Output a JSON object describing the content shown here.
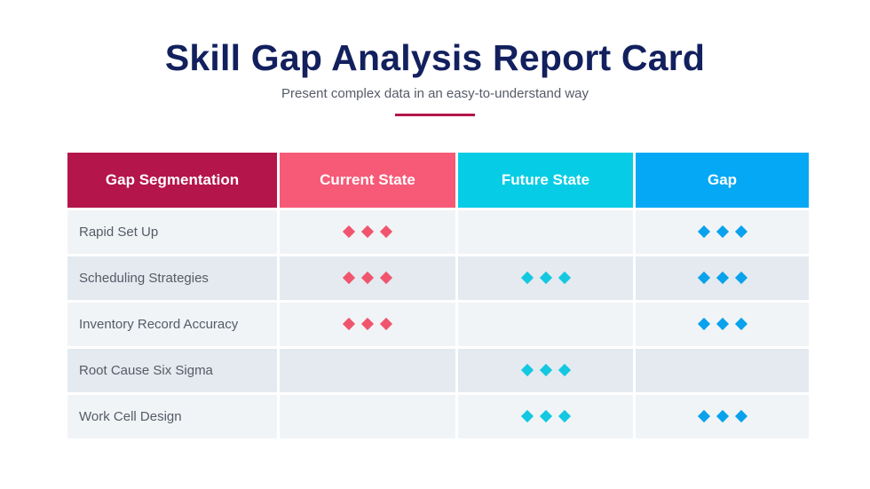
{
  "header": {
    "title": "Skill Gap Analysis Report Card",
    "subtitle": "Present complex data in an easy-to-understand way"
  },
  "colors": {
    "title": "#12205e",
    "divider": "#b4154a",
    "current_marker": "#f0556e",
    "future_marker": "#13c8e0",
    "gap_marker": "#0aa2ec"
  },
  "table": {
    "columns": [
      {
        "label": "Gap Segmentation",
        "color": "#b4154a",
        "width": 236
      },
      {
        "label": "Current State",
        "color": "#f65a77",
        "width": 198
      },
      {
        "label": "Future State",
        "color": "#06cde5",
        "width": 197
      },
      {
        "label": "Gap",
        "color": "#04a8f4",
        "width": 195
      }
    ],
    "marker_icon": "diamond-icon",
    "marker_count": 3,
    "rows": [
      {
        "label": "Rapid Set Up",
        "current": true,
        "future": false,
        "gap": true
      },
      {
        "label": "Scheduling Strategies",
        "current": true,
        "future": true,
        "gap": true
      },
      {
        "label": "Inventory Record Accuracy",
        "current": true,
        "future": false,
        "gap": true
      },
      {
        "label": "Root Cause Six Sigma",
        "current": false,
        "future": true,
        "gap": false
      },
      {
        "label": "Work Cell Design",
        "current": false,
        "future": true,
        "gap": true
      }
    ]
  }
}
